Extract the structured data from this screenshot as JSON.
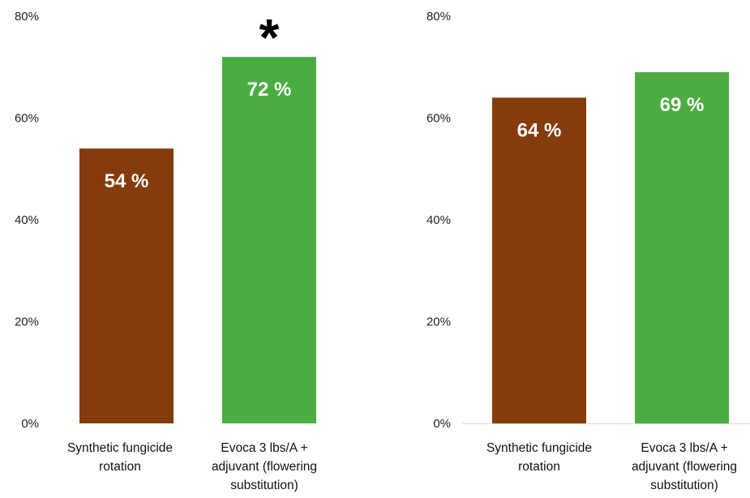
{
  "charts": [
    {
      "chart_data": {
        "type": "bar",
        "categories": [
          [
            "Synthetic fungicide",
            "rotation"
          ],
          [
            "Evoca 3 lbs/A +",
            "adjuvant (flowering",
            "substitution)"
          ]
        ],
        "values": [
          54,
          72
        ],
        "value_labels": [
          "54 %",
          "72 %"
        ],
        "ylim": [
          0,
          80
        ],
        "yticks": [
          "0%",
          "20%",
          "40%",
          "60%",
          "80%"
        ],
        "grid": false,
        "annotation": "*",
        "annotation_category_index": 1
      }
    },
    {
      "chart_data": {
        "type": "bar",
        "categories": [
          [
            "Synthetic fungicide",
            "rotation"
          ],
          [
            "Evoca 3 lbs/A +",
            "adjuvant (flowering",
            "substitution)"
          ]
        ],
        "values": [
          64,
          69
        ],
        "value_labels": [
          "64 %",
          "69 %"
        ],
        "ylim": [
          0,
          80
        ],
        "yticks": [
          "0%",
          "20%",
          "40%",
          "60%",
          "80%"
        ],
        "grid": false
      }
    }
  ],
  "colors": {
    "synthetic": "#843C0C",
    "evoca": "#4BAC42",
    "axis": "#d9d9d9"
  }
}
